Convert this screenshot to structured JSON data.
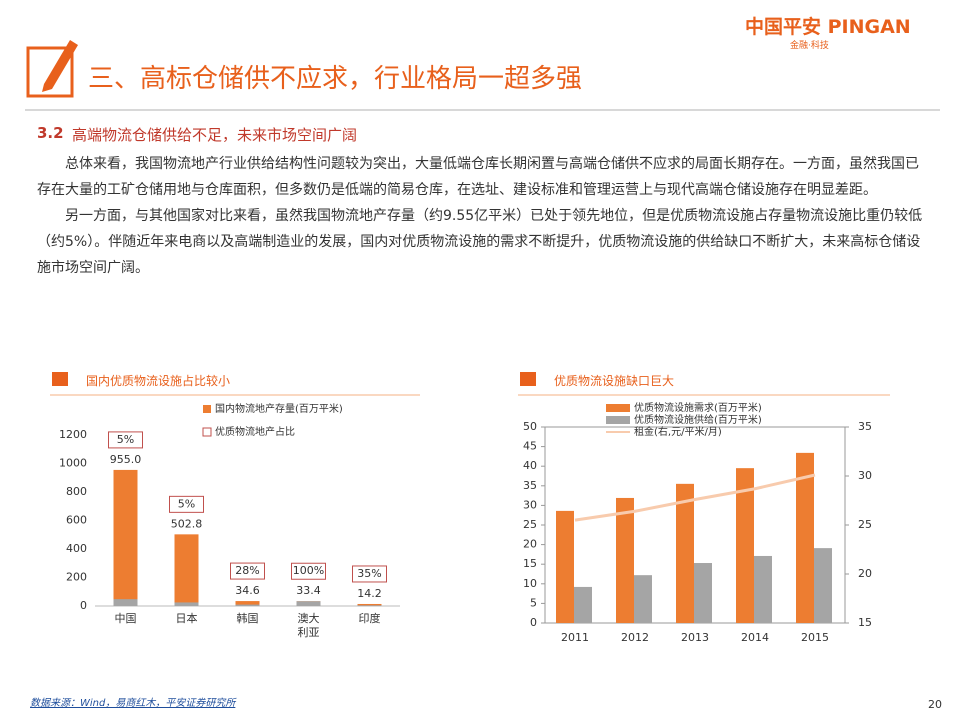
{
  "header": {
    "logo": "中国平安 PINGAN",
    "slogan": "金融·科技",
    "title": "三、高标仓储供不应求，行业格局一超多强"
  },
  "section": {
    "number": "3.2",
    "heading": "高端物流仓储供给不足，未来市场空间广阔",
    "paragraphs": [
      "总体来看，我国物流地产行业供给结构性问题较为突出，大量低端仓库长期闲置与高端仓储供不应求的局面长期存在。一方面，虽然我国已存在大量的工矿仓储用地与仓库面积，但多数仍是低端的简易仓库，在选址、建设标准和管理运营上与现代高端仓储设施存在明显差距。",
      "另一方面，与其他国家对比来看，虽然我国物流地产存量（约9.55亿平米）已处于领先地位，但是优质物流设施占存量物流设施比重仍较低（约5%）。伴随近年来电商以及高端制造业的发展，国内对优质物流设施的需求不断提升，优质物流设施的供给缺口不断扩大，未来高标仓储设施市场空间广阔。"
    ]
  },
  "chart_data": [
    {
      "type": "bar",
      "title": "国内优质物流设施占比较小",
      "categories": [
        "中国",
        "日本",
        "韩国",
        "澳大利亚",
        "印度"
      ],
      "series": [
        {
          "name": "国内物流地产存量(百万平米)",
          "color": "#ed7d31",
          "values": [
            955.0,
            502.8,
            34.6,
            33.4,
            14.2
          ],
          "value_labels": [
            "955.0",
            "502.8",
            "34.6",
            "33.4",
            "14.2"
          ]
        },
        {
          "color": "#a5a5a5",
          "values": [
            48,
            25,
            10,
            33.4,
            5
          ]
        }
      ],
      "share": {
        "name": "优质物流地产占比",
        "color": "#c0504d",
        "values": [
          5,
          5,
          28,
          100,
          35
        ],
        "value_labels": [
          "5%",
          "5%",
          "28%",
          "100%",
          "35%"
        ]
      },
      "ylim": [
        0,
        1200
      ],
      "yticks": [
        0,
        200,
        400,
        600,
        800,
        1000,
        1200
      ]
    },
    {
      "type": "bar-line",
      "title": "优质物流设施缺口巨大",
      "categories": [
        "2011",
        "2012",
        "2013",
        "2014",
        "2015"
      ],
      "series": [
        {
          "name": "优质物流设施需求(百万平米)",
          "color": "#ed7d31",
          "values": [
            28.6,
            31.9,
            35.5,
            39.5,
            43.4
          ]
        },
        {
          "name": "优质物流设施供给(百万平米)",
          "color": "#a5a5a5",
          "values": [
            9.2,
            12.2,
            15.3,
            17.1,
            19.1
          ]
        },
        {
          "name": "租金(右,元/平米/月)",
          "color": "#f8cbad",
          "axis": "y2",
          "values": [
            25.5,
            26.4,
            27.6,
            28.7,
            30.1
          ]
        }
      ],
      "ylim": [
        0,
        50
      ],
      "yticks": [
        0,
        5,
        10,
        15,
        20,
        25,
        30,
        35,
        40,
        45,
        50
      ],
      "y2lim": [
        15,
        35
      ],
      "y2ticks": [
        15,
        20,
        25,
        30,
        35
      ]
    }
  ],
  "footer": {
    "source": "数据来源：Wind，易商红木，平安证券研究所",
    "page": "20"
  }
}
